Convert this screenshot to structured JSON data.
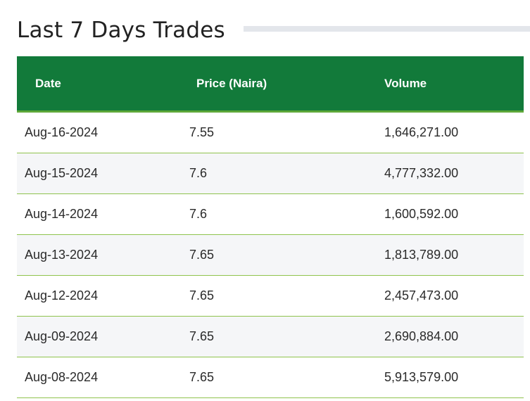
{
  "title": "Last 7 Days Trades",
  "columns": {
    "date": "Date",
    "price": "Price (Naira)",
    "volume": "Volume"
  },
  "rows": [
    {
      "date": "Aug-16-2024",
      "price": "7.55",
      "volume": "1,646,271.00"
    },
    {
      "date": "Aug-15-2024",
      "price": "7.6",
      "volume": "4,777,332.00"
    },
    {
      "date": "Aug-14-2024",
      "price": "7.6",
      "volume": "1,600,592.00"
    },
    {
      "date": "Aug-13-2024",
      "price": "7.65",
      "volume": "1,813,789.00"
    },
    {
      "date": "Aug-12-2024",
      "price": "7.65",
      "volume": "2,457,473.00"
    },
    {
      "date": "Aug-09-2024",
      "price": "7.65",
      "volume": "2,690,884.00"
    },
    {
      "date": "Aug-08-2024",
      "price": "7.65",
      "volume": "5,913,579.00"
    }
  ],
  "colors": {
    "header_bg": "#127a3a",
    "row_divider": "#8fc34d"
  }
}
